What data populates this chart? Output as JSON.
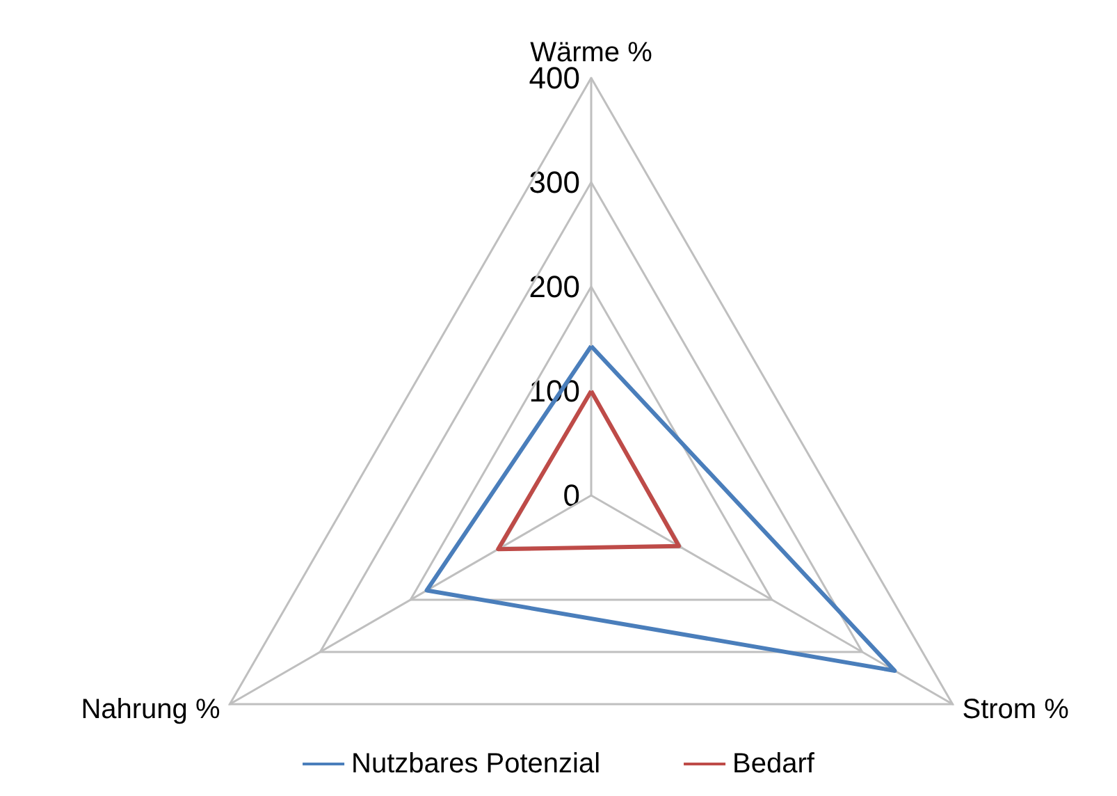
{
  "chart_data": {
    "type": "radar",
    "categories": [
      "Wärme %",
      "Strom %",
      "Nahrung %"
    ],
    "series": [
      {
        "name": "Nutzbares Potenzial",
        "color": "#4a7ebb",
        "values": [
          143,
          336,
          182
        ]
      },
      {
        "name": "Bedarf",
        "color": "#be4b48",
        "values": [
          100,
          97,
          103
        ]
      }
    ],
    "ylim": [
      0,
      400
    ],
    "yticks": [
      0,
      100,
      200,
      300,
      400
    ],
    "grid": true,
    "legend": "bottom",
    "marker": "none"
  }
}
